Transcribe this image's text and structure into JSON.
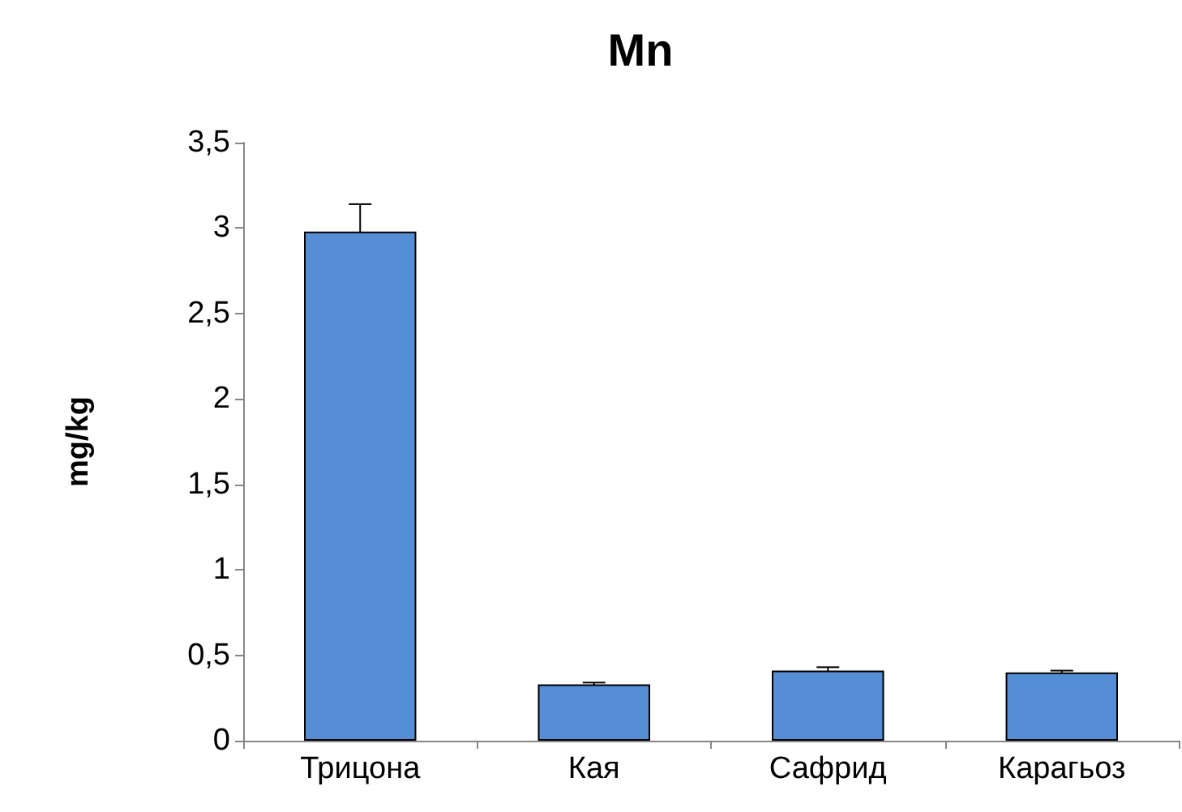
{
  "chart_data": {
    "type": "bar",
    "title": "Mn",
    "ylabel": "mg/kg",
    "categories": [
      "Трицона",
      "Кая",
      "Сафрид",
      "Карагьоз"
    ],
    "values": [
      2.98,
      0.33,
      0.41,
      0.4
    ],
    "errors": [
      0.16,
      0.01,
      0.02,
      0.01
    ],
    "color": "#558ed5",
    "ylim": [
      0,
      3.5
    ],
    "yticks": [
      {
        "value": 0,
        "label": "0"
      },
      {
        "value": 0.5,
        "label": "0,5"
      },
      {
        "value": 1,
        "label": "1"
      },
      {
        "value": 1.5,
        "label": "1,5"
      },
      {
        "value": 2,
        "label": "2"
      },
      {
        "value": 2.5,
        "label": "2,5"
      },
      {
        "value": 3,
        "label": "3"
      },
      {
        "value": 3.5,
        "label": "3,5"
      }
    ],
    "grid": false
  }
}
